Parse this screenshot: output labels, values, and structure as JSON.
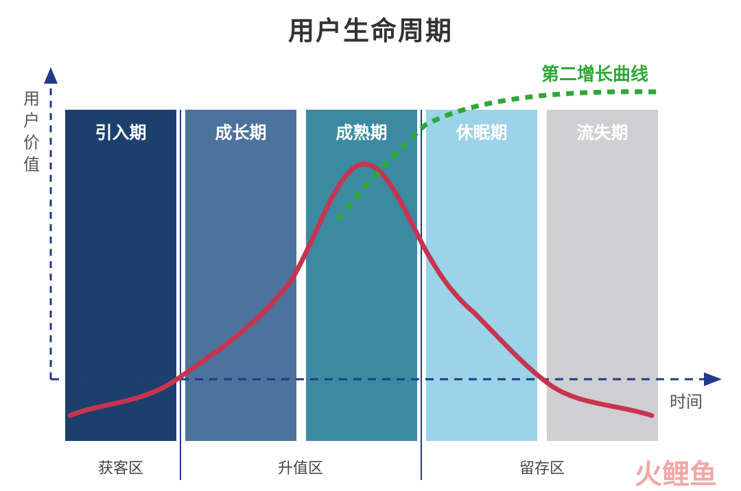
{
  "title": "用户生命周期",
  "y_axis_label": [
    "用",
    "户",
    "价",
    "值"
  ],
  "x_axis_label": "时间",
  "stages": [
    {
      "label": "引入期",
      "color": "#1c3f6e"
    },
    {
      "label": "成长期",
      "color": "#4d729c"
    },
    {
      "label": "成熟期",
      "color": "#3b8aa2"
    },
    {
      "label": "休眠期",
      "color": "#9bd3e8"
    },
    {
      "label": "流失期",
      "color": "#cfcfd2"
    }
  ],
  "zones": [
    "获客区",
    "升值区",
    "留存区"
  ],
  "second_curve_label": "第二增长曲线",
  "colors": {
    "main_curve": "#c8344f",
    "second_curve": "#2ea836",
    "axis": "#1f3a8a",
    "divider": "#1f3a8a"
  },
  "watermark": "火鲤鱼"
}
